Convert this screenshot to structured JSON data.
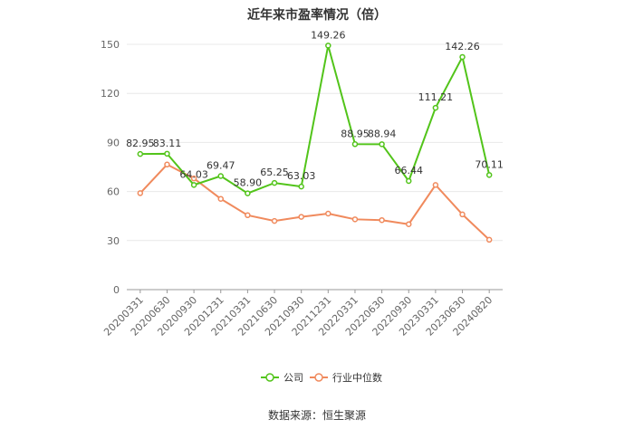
{
  "chart_data": {
    "type": "line",
    "title": "近年来市盈率情况（倍）",
    "source": "数据来源：恒生聚源",
    "categories": [
      "20200331",
      "20200630",
      "20200930",
      "20201231",
      "20210331",
      "20210630",
      "20210930",
      "20211231",
      "20220331",
      "20220630",
      "20220930",
      "20230331",
      "20230630",
      "20240820"
    ],
    "ylim": [
      0,
      150
    ],
    "yticks": [
      0,
      30,
      60,
      90,
      120,
      150
    ],
    "grid": true,
    "legend_position": "bottom",
    "series": [
      {
        "name": "公司",
        "color": "#52c41a",
        "values": [
          82.95,
          83.11,
          64.03,
          69.47,
          58.9,
          65.25,
          63.03,
          149.26,
          88.95,
          88.94,
          66.44,
          111.21,
          142.26,
          70.11
        ],
        "labels": [
          "82.95",
          "83.11",
          "64.03",
          "69.47",
          "58.90",
          "65.25",
          "63.03",
          "149.26",
          "88.95",
          "88.94",
          "66.44",
          "111.21",
          "142.26",
          "70.11"
        ]
      },
      {
        "name": "行业中位数",
        "color": "#f08a5d",
        "values": [
          59.0,
          76.5,
          68.0,
          55.5,
          45.5,
          42.0,
          44.5,
          46.5,
          43.0,
          42.5,
          40.0,
          64.0,
          46.0,
          30.5
        ]
      }
    ]
  }
}
